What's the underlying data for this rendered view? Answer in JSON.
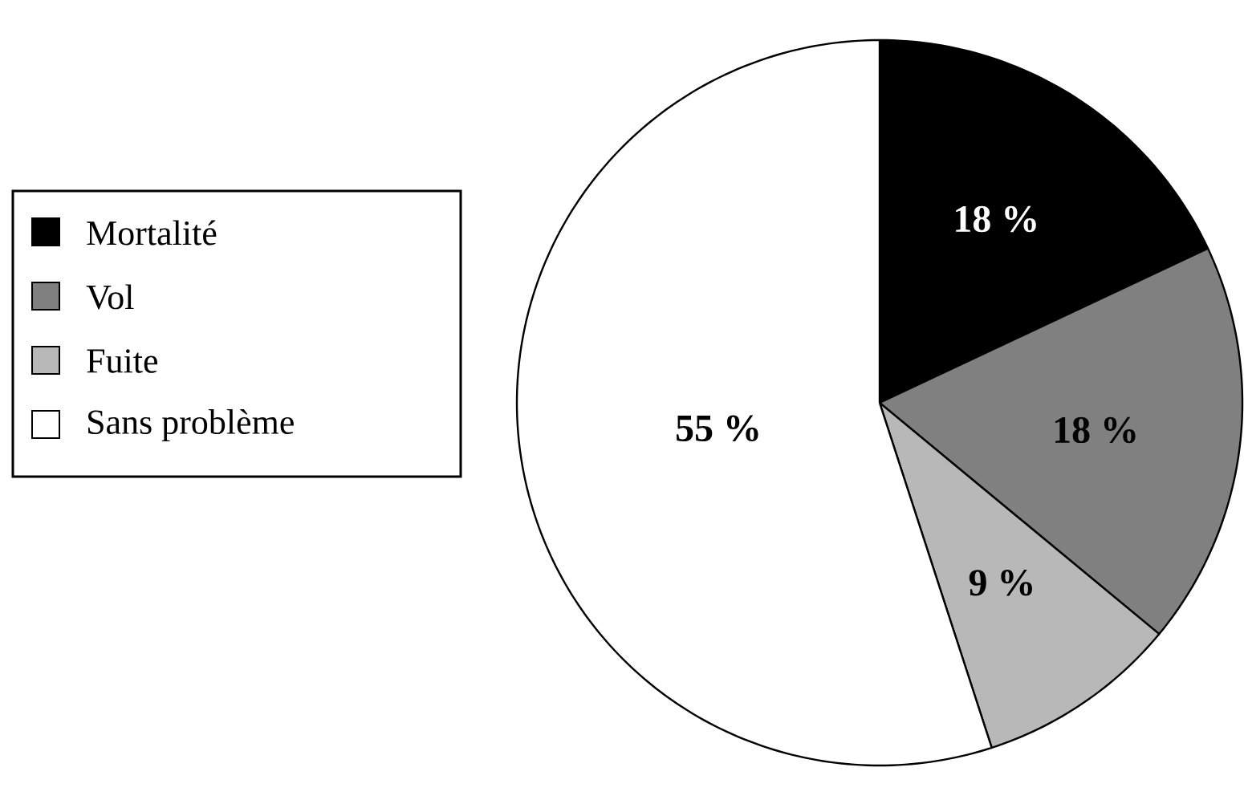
{
  "chart_data": {
    "type": "pie",
    "categories": [
      "Mortalité",
      "Vol",
      "Fuite",
      "Sans problème"
    ],
    "values": [
      18,
      18,
      9,
      55
    ],
    "colors": [
      "#000000",
      "#808080",
      "#b8b8b8",
      "#ffffff"
    ],
    "value_labels": [
      "18 %",
      "18 %",
      "9 %",
      "55 %"
    ],
    "legend": "left"
  }
}
